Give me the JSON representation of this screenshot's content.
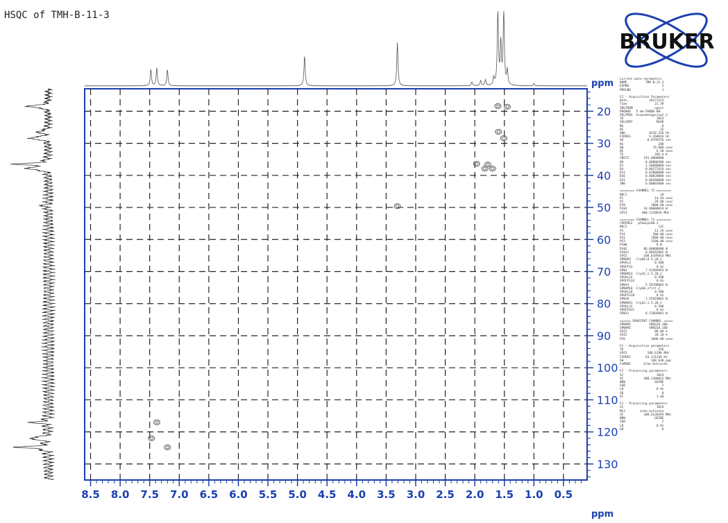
{
  "title": "HSQC of TMH-B-11-3",
  "logo": {
    "text": "BRUKER",
    "color": "#1a3fb0"
  },
  "colors": {
    "axis": "#1a3fb0",
    "spectrum": "#555555",
    "contour": "#666666"
  },
  "chart_data": {
    "type": "scatter",
    "title": "HSQC of TMH-B-11-3",
    "x_axis": {
      "unit": "ppm",
      "range": [
        8.6,
        0.1
      ],
      "reversed": true,
      "ticks": [
        "8.5",
        "8.0",
        "7.5",
        "7.0",
        "6.5",
        "6.0",
        "5.5",
        "5.0",
        "4.5",
        "4.0",
        "3.5",
        "3.0",
        "2.5",
        "2.0",
        "1.5",
        "1.0",
        "0.5"
      ]
    },
    "y_axis": {
      "unit": "ppm",
      "range": [
        13,
        135
      ],
      "reversed": true,
      "ticks": [
        "20",
        "30",
        "40",
        "50",
        "60",
        "70",
        "80",
        "90",
        "100",
        "110",
        "120",
        "130"
      ]
    },
    "grid": true,
    "cross_peaks": [
      {
        "h": 1.61,
        "c": 18.4
      },
      {
        "h": 1.45,
        "c": 18.6
      },
      {
        "h": 1.6,
        "c": 26.4
      },
      {
        "h": 1.51,
        "c": 28.4
      },
      {
        "h": 1.97,
        "c": 36.4
      },
      {
        "h": 1.78,
        "c": 36.6
      },
      {
        "h": 1.83,
        "c": 37.9
      },
      {
        "h": 1.7,
        "c": 37.9
      },
      {
        "h": 3.31,
        "c": 49.6
      },
      {
        "h": 7.38,
        "c": 117.0
      },
      {
        "h": 7.47,
        "c": 122.0
      },
      {
        "h": 7.2,
        "c": 124.8
      }
    ],
    "f2_projection_peaks": [
      {
        "ppm": 7.48,
        "height": 0.22
      },
      {
        "ppm": 7.38,
        "height": 0.24
      },
      {
        "ppm": 7.2,
        "height": 0.22
      },
      {
        "ppm": 4.88,
        "height": 0.4
      },
      {
        "ppm": 3.31,
        "height": 0.58
      },
      {
        "ppm": 2.05,
        "height": 0.05
      },
      {
        "ppm": 1.9,
        "height": 0.07
      },
      {
        "ppm": 1.82,
        "height": 0.08
      },
      {
        "ppm": 1.68,
        "height": 0.1
      },
      {
        "ppm": 1.61,
        "height": 1.0
      },
      {
        "ppm": 1.56,
        "height": 0.55
      },
      {
        "ppm": 1.51,
        "height": 1.0
      },
      {
        "ppm": 1.45,
        "height": 0.2
      },
      {
        "ppm": 1.0,
        "height": 0.03
      }
    ],
    "f1_projection_peaks": [
      {
        "ppm": 18.5,
        "height": 0.6
      },
      {
        "ppm": 28.4,
        "height": 0.55
      },
      {
        "ppm": 26.4,
        "height": 0.3
      },
      {
        "ppm": 36.5,
        "height": 0.8
      },
      {
        "ppm": 37.9,
        "height": 0.6
      },
      {
        "ppm": 49.6,
        "height": 0.15
      },
      {
        "ppm": 117.0,
        "height": 0.4
      },
      {
        "ppm": 122.0,
        "height": 0.55
      },
      {
        "ppm": 124.8,
        "height": 0.8
      }
    ]
  },
  "parameters_text": "Current Data Parameters\nNAME          TMH-B-11-3\nEXPNO                  3\nPROCNO                 1\n\nF2 - Acquisition Parameters\nDate_           20171223\nTime               21.39\nINSTRUM            spect\nPROBHD   5 mm PABBO BB-\nPULPROG  hsqcedetgpsisp2.3\nTD                  1024\nSOLVENT             MeOD\nNS                     8\nDS                    32\nSWH             6410.256 Hz\nFIDRES          6.260016 Hz\nAQ             0.0799256 sec\nRG                   208\nDW                78.000 usec\nDE                  6.50 usec\nTE                 296.4 K\nCNST2        145.0000000\nD0            0.00000300 sec\nD1            1.50000000 sec\nD4            0.00172414 sec\nD11           0.03000000 sec\nD16           0.00020000 sec\nD21           0.00360000 sec\nIN0           0.00003000 sec\n\n======== CHANNEL f1 ========\nNUC1                  1H\nP1                 14.94 usec\nP2                 29.88 usec\nP28              1000.00 usec\nPLW1         18.90000019 W\nSFO1        400.1318018 MHz\n\n======== CHANNEL f2 ========\nCPDPRG2   p5m4sp180.2\nNUC2                 13C\nP3                 12.29 usec\nP14               500.00 usec\nP31              1900.00 usec\nP63              1500.00 usec\nPLW0                0 W\nPLW2         86.00000000 W\nPLW12         0.80282002 W\nSFO2         100.6195014 MHz\nSPNAM3   Crp60,0.5,20.1\nSPOAL3             0.500\nSPOFFS3             0 Hz\nSPW3          7.52469993 W\nSPNAM14  Crp42,1.5,20.2\nSPOAL14            0.500\nSPOFFS14            0 Hz\nSPW14         5.56700003 W\nSPNAM18  Crp60_xfilt.2\nSPOAL18            0.500\nSPOFFS18            0 Hz\nSPW18         1.55010001 W\nSPNAM31  Crp42,1.5,20.2\nSPOAL31            0.500\nSPOFFS31            0 Hz\nSPW31         0.53694001 W\n\n====== GRADIENT CHANNEL =====\nGPNAM1          SMSQ10.100\nGPNAM2          SMSQ10.100\nGPZ1               80.00 %\nGPZ2               20.10 %\nP16              1000.00 usec\n\nF1 - Acquisition parameters\nTD                   256\nSFO1           100.6198 MHz\nFIDRES        63.111244 Hz\nSW               160.638 ppm\nFnMODE       Echo-Antiecho\n\nF2 - Processing parameters\nSI                  1024\nSF           400.1300015 MHz\nWDW                QSINE\nSSB                    2\nLB                  0 Hz\nGB                     0\nPC                  1.40\n\nF1 - Processing parameters\nSI                  1024\nMC2        echo-antiecho\nSF           100.6128293 MHz\nWDW                QSINE\nSSB                    2\nLB                  0 Hz\nGB                     0"
}
